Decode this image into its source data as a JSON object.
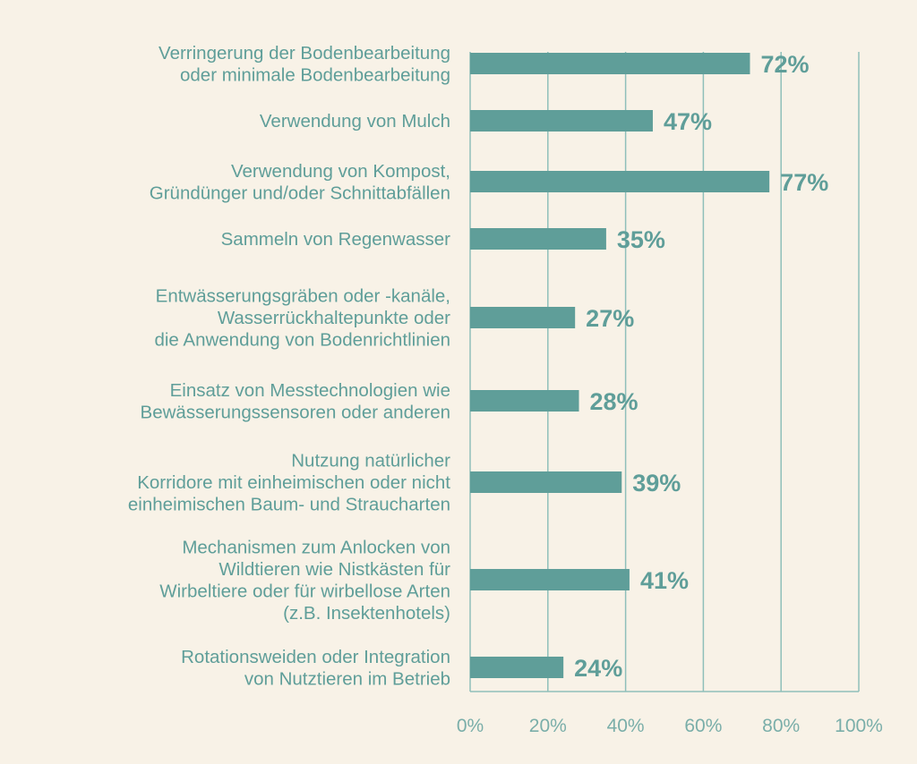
{
  "chart_data": {
    "type": "bar",
    "orientation": "horizontal",
    "categories": [
      [
        "Verringerung der Bodenbearbeitung",
        "oder minimale Bodenbearbeitung"
      ],
      [
        "Verwendung von Mulch"
      ],
      [
        "Verwendung von Kompost,",
        "Gründünger und/oder Schnittabfällen"
      ],
      [
        "Sammeln von Regenwasser"
      ],
      [
        "Entwässerungsgräben oder -kanäle,",
        "Wasserrückhaltepunkte oder",
        "die Anwendung von Bodenrichtlinien"
      ],
      [
        "Einsatz von Messtechnologien wie",
        "Bewässerungssensoren oder anderen"
      ],
      [
        "Nutzung natürlicher",
        "Korridore mit einheimischen oder nicht",
        "einheimischen Baum- und Straucharten"
      ],
      [
        "Mechanismen zum Anlocken von",
        "Wildtieren wie Nistkästen für",
        "Wirbeltiere oder für wirbellose Arten",
        "(z.B. Insektenhotels)"
      ],
      [
        "Rotationsweiden oder Integration",
        "von Nutztieren im Betrieb"
      ]
    ],
    "values": [
      72,
      47,
      77,
      35,
      27,
      28,
      39,
      41,
      24
    ],
    "value_labels": [
      "72%",
      "47%",
      "77%",
      "35%",
      "27%",
      "28%",
      "39%",
      "41%",
      "24%"
    ],
    "xlim": [
      0,
      100
    ],
    "xticks": [
      0,
      20,
      40,
      60,
      80,
      100
    ],
    "xtick_labels": [
      "0%",
      "20%",
      "40%",
      "60%",
      "80%",
      "100%"
    ],
    "grid": true,
    "title": "",
    "xlabel": "",
    "ylabel": "",
    "colors": {
      "bar": "#5f9e99",
      "grid": "#8fbfba",
      "background": "#f8f2e7",
      "text": "#5f9e99"
    }
  }
}
